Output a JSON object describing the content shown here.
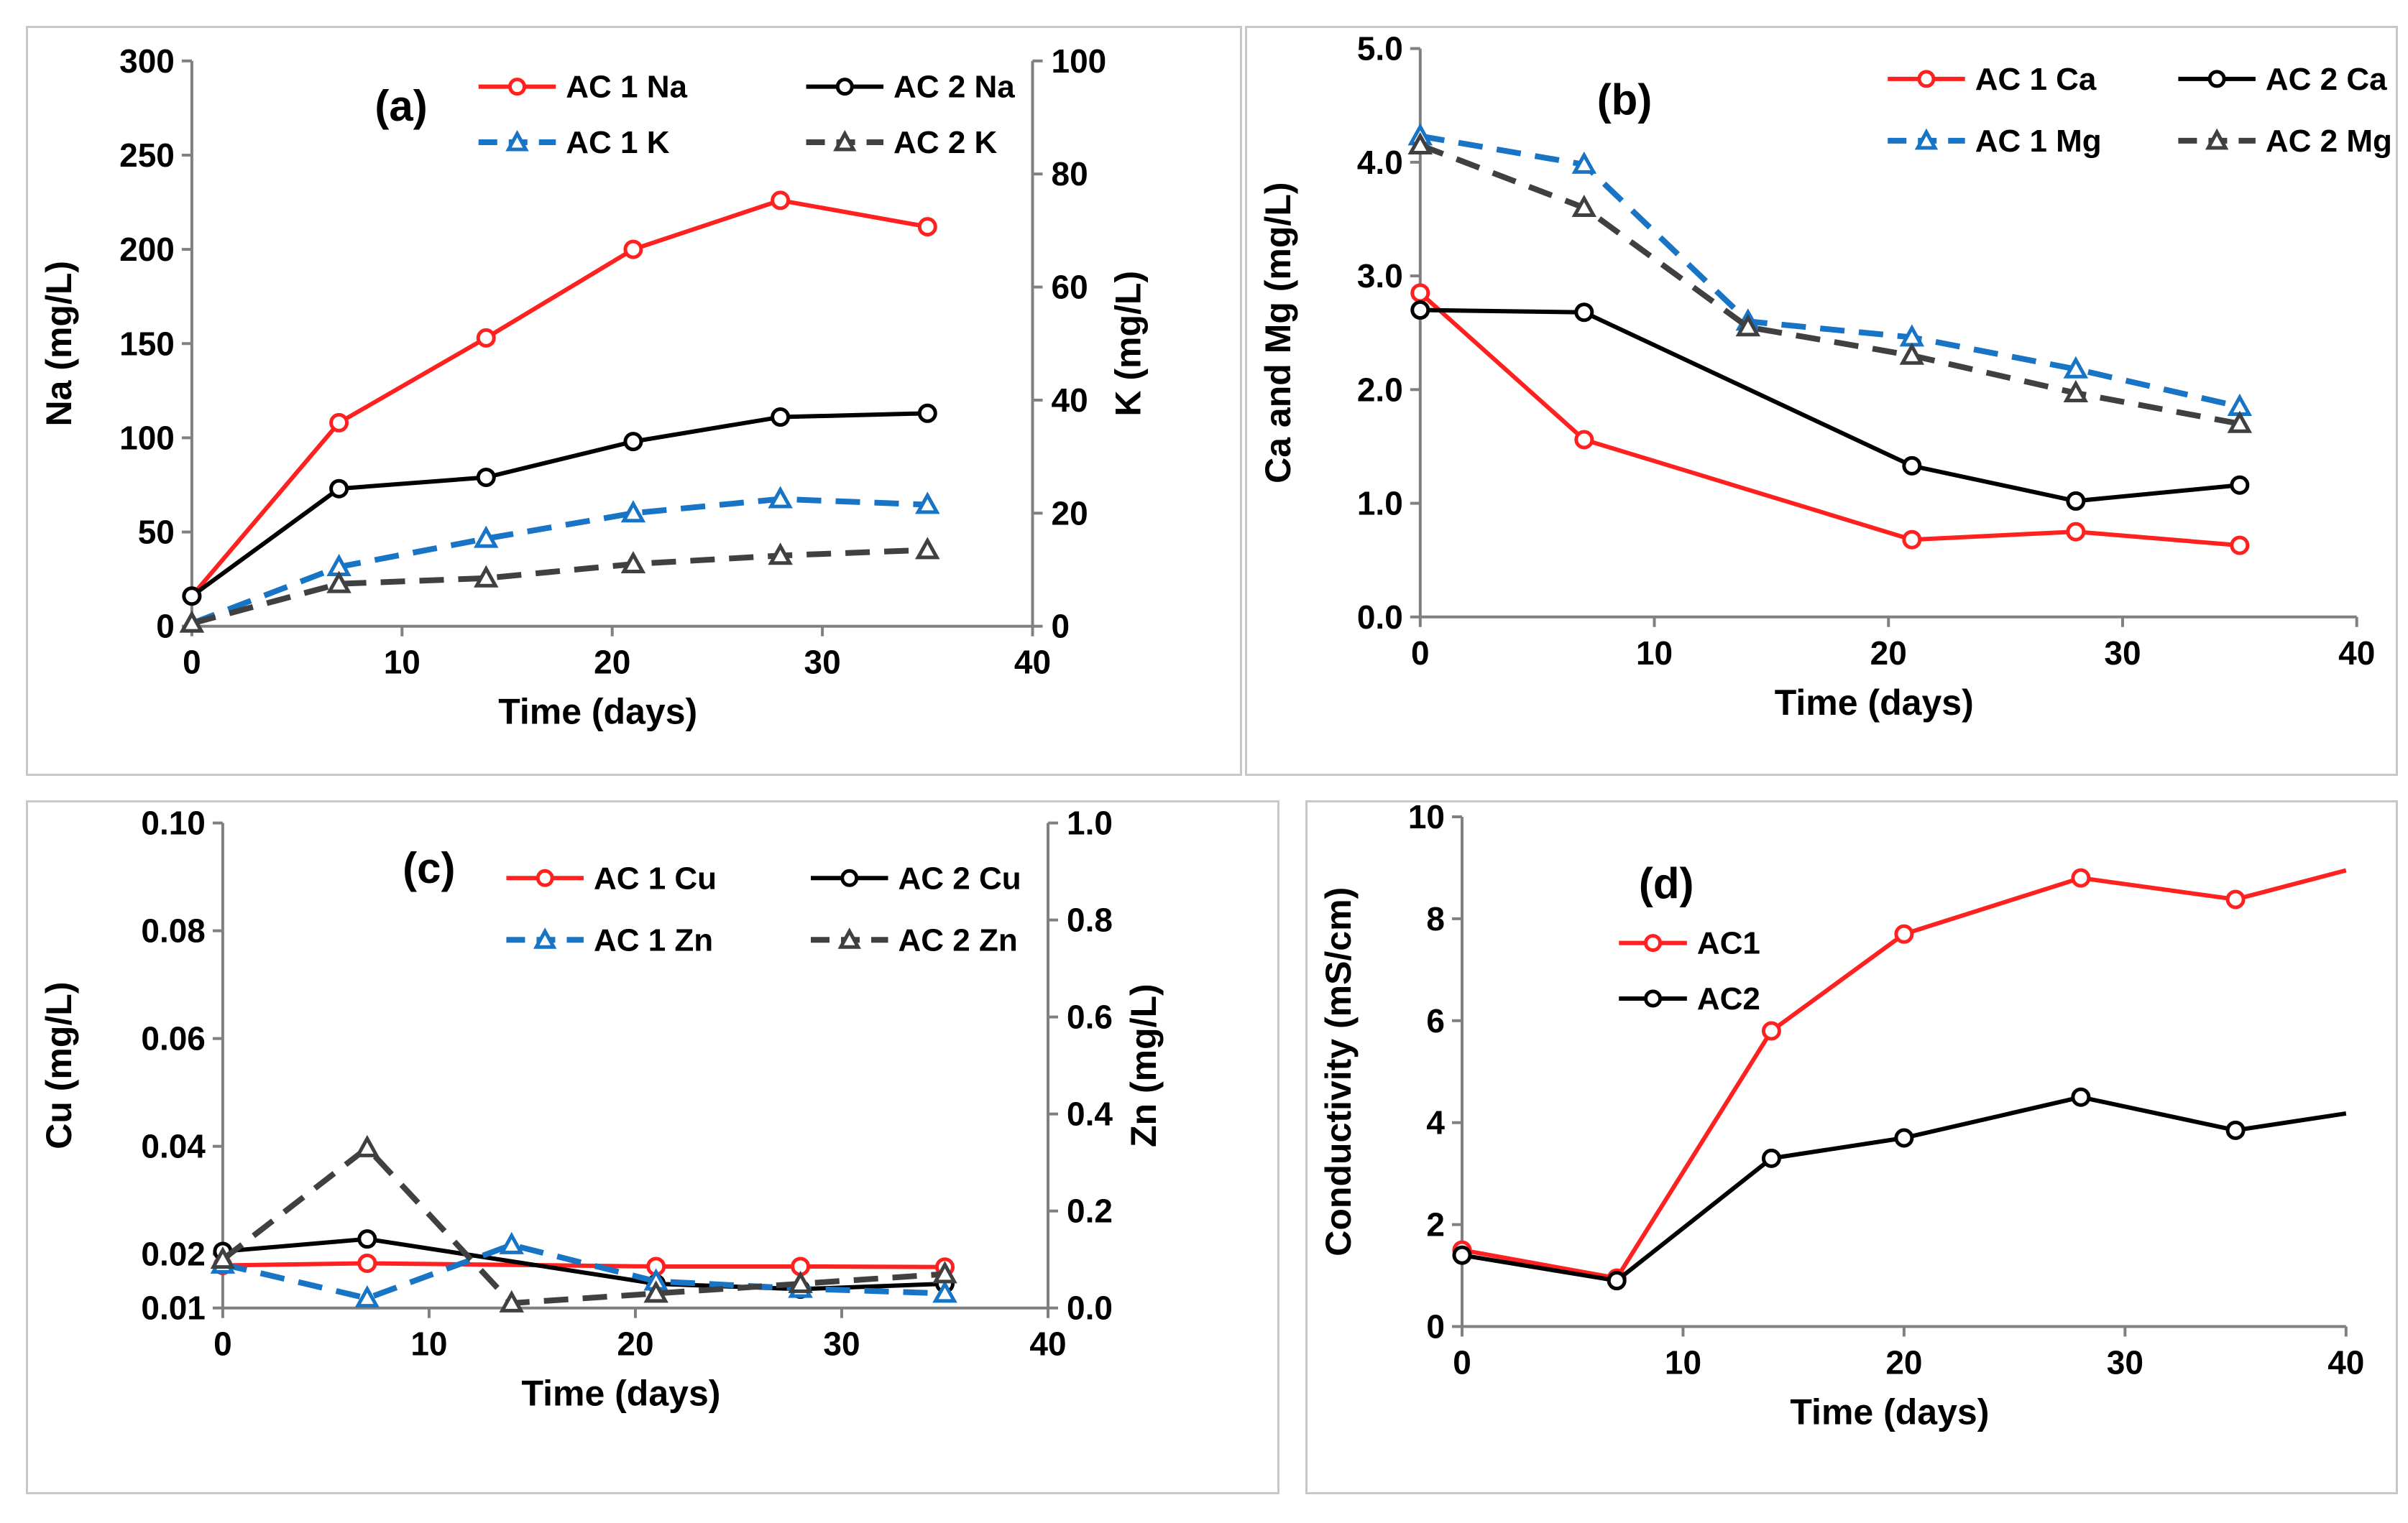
{
  "colors": {
    "red": "#ff2020",
    "black": "#000000",
    "blue": "#1874c4",
    "gray": "#404040"
  },
  "chart_data": [
    {
      "id": "a",
      "type": "line",
      "panel_label": "(a)",
      "xlabel": "Time (days)",
      "ylabel": "Na (mg/L)",
      "y2label": "K (mg/L)",
      "xlim": [
        0,
        40
      ],
      "ylim": [
        0,
        300
      ],
      "y2lim": [
        0,
        100
      ],
      "xticks": [
        "0",
        "10",
        "20",
        "30",
        "40"
      ],
      "yticks": [
        "0",
        "50",
        "100",
        "150",
        "200",
        "250",
        "300"
      ],
      "y2ticks": [
        "0",
        "20",
        "40",
        "60",
        "80",
        "100"
      ],
      "series": [
        {
          "name": "AC 1 Na",
          "axis": "left",
          "color": "#ff2020",
          "dash": false,
          "marker": "circle",
          "x": [
            0,
            7,
            14,
            21,
            28,
            35
          ],
          "values": [
            16,
            108,
            153,
            200,
            226,
            212
          ]
        },
        {
          "name": "AC 2 Na",
          "axis": "left",
          "color": "#000000",
          "dash": false,
          "marker": "circle",
          "x": [
            0,
            7,
            14,
            21,
            28,
            35
          ],
          "values": [
            16,
            73,
            79,
            98,
            111,
            113
          ]
        },
        {
          "name": "AC 1 K",
          "axis": "right",
          "color": "#1874c4",
          "dash": true,
          "marker": "triangle",
          "x": [
            0,
            7,
            14,
            21,
            28,
            35
          ],
          "values": [
            0.5,
            10.5,
            15.5,
            20,
            22.5,
            21.5
          ]
        },
        {
          "name": "AC 2 K",
          "axis": "right",
          "color": "#404040",
          "dash": true,
          "marker": "triangle",
          "x": [
            0,
            7,
            14,
            21,
            28,
            35
          ],
          "values": [
            0.5,
            7.5,
            8.5,
            11,
            12.5,
            13.5
          ]
        }
      ]
    },
    {
      "id": "b",
      "type": "line",
      "panel_label": "(b)",
      "xlabel": "Time (days)",
      "ylabel": "Ca  and Mg (mg/L)",
      "xlim": [
        0,
        40
      ],
      "ylim": [
        0,
        5
      ],
      "xticks": [
        "0",
        "10",
        "20",
        "30",
        "40"
      ],
      "yticks": [
        "0.0",
        "1.0",
        "2.0",
        "3.0",
        "4.0",
        "5.0"
      ],
      "series": [
        {
          "name": "AC 1 Ca",
          "axis": "left",
          "color": "#ff2020",
          "dash": false,
          "marker": "circle",
          "x": [
            0,
            7,
            21,
            28,
            35
          ],
          "values": [
            2.85,
            1.56,
            0.68,
            0.75,
            0.63
          ]
        },
        {
          "name": "AC 2 Ca",
          "axis": "left",
          "color": "#000000",
          "dash": false,
          "marker": "circle",
          "x": [
            0,
            7,
            21,
            28,
            35
          ],
          "values": [
            2.7,
            2.68,
            1.33,
            1.02,
            1.16
          ]
        },
        {
          "name": "AC 1  Mg",
          "axis": "left",
          "color": "#1874c4",
          "dash": true,
          "marker": "triangle",
          "x": [
            0,
            7,
            14,
            21,
            28,
            35
          ],
          "values": [
            4.23,
            3.98,
            2.6,
            2.46,
            2.18,
            1.85
          ]
        },
        {
          "name": "AC 2  Mg",
          "axis": "left",
          "color": "#404040",
          "dash": true,
          "marker": "triangle",
          "x": [
            0,
            7,
            14,
            21,
            28,
            35
          ],
          "values": [
            4.15,
            3.6,
            2.55,
            2.3,
            1.97,
            1.7
          ]
        }
      ]
    },
    {
      "id": "c",
      "type": "line",
      "panel_label": "(c)",
      "xlabel": "Time (days)",
      "ylabel": "Cu (mg/L)",
      "y2label": "Zn (mg/L)",
      "xlim": [
        0,
        40
      ],
      "ylim": [
        0.01,
        0.1
      ],
      "y2lim": [
        0,
        1
      ],
      "xticks": [
        "0",
        "10",
        "20",
        "30",
        "40"
      ],
      "yticks": [
        "0.01",
        "0.02",
        "0.04",
        "0.06",
        "0.08",
        "0.10"
      ],
      "ytick_values": [
        0.01,
        0.02,
        0.04,
        0.06,
        0.08,
        0.1
      ],
      "y2ticks": [
        "0.0",
        "0.2",
        "0.4",
        "0.6",
        "0.8",
        "1.0"
      ],
      "series": [
        {
          "name": "AC 1  Cu",
          "axis": "left",
          "color": "#ff2020",
          "dash": false,
          "marker": "circle",
          "x": [
            0,
            7,
            21,
            28,
            35
          ],
          "values": [
            0.0179,
            0.0183,
            0.0177,
            0.0177,
            0.0176
          ]
        },
        {
          "name": "AC 2 Cu",
          "axis": "left",
          "color": "#000000",
          "dash": false,
          "marker": "circle",
          "x": [
            0,
            7,
            21,
            28,
            35
          ],
          "values": [
            0.0205,
            0.0228,
            0.0145,
            0.0135,
            0.0145
          ]
        },
        {
          "name": "AC 1  Zn",
          "axis": "right",
          "color": "#1874c4",
          "dash": true,
          "marker": "triangle",
          "x": [
            0,
            7,
            14,
            21,
            28,
            35
          ],
          "values": [
            0.09,
            0.02,
            0.13,
            0.055,
            0.04,
            0.03
          ]
        },
        {
          "name": "AC 2  Zn",
          "axis": "right",
          "color": "#404040",
          "dash": true,
          "marker": "triangle",
          "x": [
            0,
            7,
            14,
            21,
            28,
            35
          ],
          "values": [
            0.1,
            0.33,
            0.01,
            0.03,
            0.05,
            0.07
          ]
        }
      ]
    },
    {
      "id": "d",
      "type": "line",
      "panel_label": "(d)",
      "xlabel": "Time (days)",
      "ylabel": "Conductivity (mS/cm)",
      "xlim": [
        0,
        40
      ],
      "ylim": [
        0,
        10
      ],
      "xticks": [
        "0",
        "10",
        "20",
        "30",
        "40"
      ],
      "yticks": [
        "0",
        "2",
        "4",
        "6",
        "8",
        "10"
      ],
      "series": [
        {
          "name": "AC1",
          "axis": "left",
          "color": "#ff2020",
          "dash": false,
          "marker": "circle",
          "x": [
            0,
            7,
            14,
            20,
            28,
            35,
            40
          ],
          "values": [
            1.5,
            0.95,
            5.8,
            7.7,
            8.8,
            8.38,
            8.95
          ],
          "marker_indices": [
            0,
            1,
            2,
            3,
            4,
            5
          ]
        },
        {
          "name": "AC2",
          "axis": "left",
          "color": "#000000",
          "dash": false,
          "marker": "circle",
          "x": [
            0,
            7,
            14,
            20,
            28,
            35,
            40
          ],
          "values": [
            1.4,
            0.9,
            3.3,
            3.7,
            4.5,
            3.85,
            4.18
          ],
          "marker_indices": [
            0,
            1,
            2,
            3,
            4,
            5
          ]
        }
      ]
    }
  ]
}
